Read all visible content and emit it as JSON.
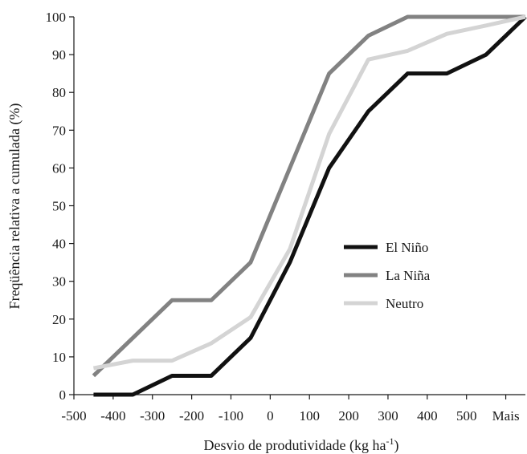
{
  "chart_data": {
    "type": "line",
    "title": "",
    "xlabel": "Desvio de produtividade (kg ha-1)",
    "ylabel": "Freqüência relativa a cumulada (%)",
    "categories": [
      "-500",
      "-400",
      "-300",
      "-200",
      "-100",
      "0",
      "100",
      "200",
      "300",
      "400",
      "500",
      "Mais"
    ],
    "ylim": [
      0,
      100
    ],
    "yticks": [
      0,
      10,
      20,
      30,
      40,
      50,
      60,
      70,
      80,
      90,
      100
    ],
    "grid": false,
    "legend_position": "right-center",
    "series": [
      {
        "name": "El Niño",
        "color": "#111111",
        "values": [
          0,
          0,
          5,
          5,
          15,
          35,
          60,
          75,
          85,
          85,
          90,
          100
        ]
      },
      {
        "name": "La Niña",
        "color": "#828282",
        "values": [
          5,
          15,
          25,
          25,
          35,
          60,
          85,
          95,
          100,
          100,
          100,
          100
        ]
      },
      {
        "name": "Neutro",
        "color": "#d4d4d4",
        "values": [
          7,
          9,
          9,
          13.6,
          20.5,
          38.5,
          69,
          88.7,
          91,
          95.5,
          97.7,
          100
        ]
      }
    ]
  }
}
